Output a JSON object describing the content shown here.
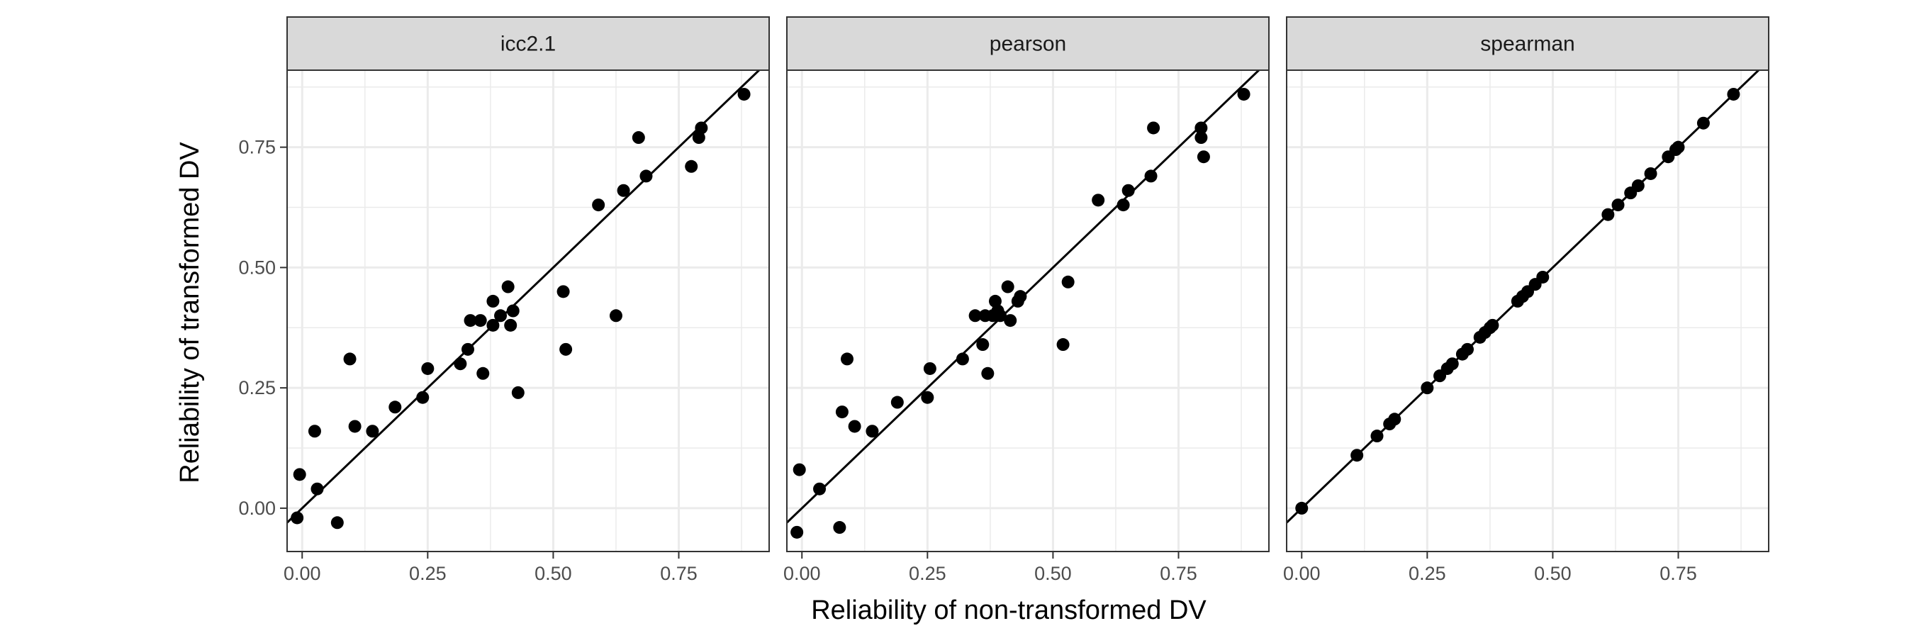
{
  "chart_data": {
    "type": "scatter",
    "xlabel": "Reliability of non-transformed DV",
    "ylabel": "Reliability of transformed DV",
    "xlim": [
      -0.03,
      0.93
    ],
    "ylim": [
      -0.09,
      0.91
    ],
    "x_ticks": [
      0.0,
      0.25,
      0.5,
      0.75
    ],
    "y_ticks": [
      0.0,
      0.25,
      0.5,
      0.75
    ],
    "tick_labels": [
      "0.00",
      "0.25",
      "0.50",
      "0.75"
    ],
    "grid": true,
    "reference_line": {
      "slope": 1,
      "intercept": 0
    },
    "colors": {
      "points": "#000000",
      "strip": "#d9d9d9",
      "grid": "#ebebeb",
      "border": "#333333"
    },
    "panels": [
      {
        "label": "icc2.1",
        "points": [
          {
            "x": -0.01,
            "y": -0.02
          },
          {
            "x": -0.005,
            "y": 0.07
          },
          {
            "x": 0.025,
            "y": 0.16
          },
          {
            "x": 0.03,
            "y": 0.04
          },
          {
            "x": 0.07,
            "y": -0.03
          },
          {
            "x": 0.095,
            "y": 0.31
          },
          {
            "x": 0.105,
            "y": 0.17
          },
          {
            "x": 0.14,
            "y": 0.16
          },
          {
            "x": 0.185,
            "y": 0.21
          },
          {
            "x": 0.24,
            "y": 0.23
          },
          {
            "x": 0.25,
            "y": 0.29
          },
          {
            "x": 0.315,
            "y": 0.3
          },
          {
            "x": 0.33,
            "y": 0.33
          },
          {
            "x": 0.335,
            "y": 0.39
          },
          {
            "x": 0.355,
            "y": 0.39
          },
          {
            "x": 0.36,
            "y": 0.28
          },
          {
            "x": 0.38,
            "y": 0.38
          },
          {
            "x": 0.38,
            "y": 0.43
          },
          {
            "x": 0.395,
            "y": 0.4
          },
          {
            "x": 0.41,
            "y": 0.46
          },
          {
            "x": 0.415,
            "y": 0.38
          },
          {
            "x": 0.42,
            "y": 0.41
          },
          {
            "x": 0.43,
            "y": 0.24
          },
          {
            "x": 0.52,
            "y": 0.45
          },
          {
            "x": 0.525,
            "y": 0.33
          },
          {
            "x": 0.59,
            "y": 0.63
          },
          {
            "x": 0.625,
            "y": 0.4
          },
          {
            "x": 0.64,
            "y": 0.66
          },
          {
            "x": 0.67,
            "y": 0.77
          },
          {
            "x": 0.685,
            "y": 0.69
          },
          {
            "x": 0.775,
            "y": 0.71
          },
          {
            "x": 0.79,
            "y": 0.77
          },
          {
            "x": 0.795,
            "y": 0.79
          },
          {
            "x": 0.88,
            "y": 0.86
          }
        ]
      },
      {
        "label": "pearson",
        "points": [
          {
            "x": -0.01,
            "y": -0.05
          },
          {
            "x": -0.005,
            "y": 0.08
          },
          {
            "x": 0.035,
            "y": 0.04
          },
          {
            "x": 0.075,
            "y": -0.04
          },
          {
            "x": 0.08,
            "y": 0.2
          },
          {
            "x": 0.09,
            "y": 0.31
          },
          {
            "x": 0.105,
            "y": 0.17
          },
          {
            "x": 0.14,
            "y": 0.16
          },
          {
            "x": 0.19,
            "y": 0.22
          },
          {
            "x": 0.25,
            "y": 0.23
          },
          {
            "x": 0.255,
            "y": 0.29
          },
          {
            "x": 0.32,
            "y": 0.31
          },
          {
            "x": 0.345,
            "y": 0.4
          },
          {
            "x": 0.36,
            "y": 0.34
          },
          {
            "x": 0.365,
            "y": 0.4
          },
          {
            "x": 0.37,
            "y": 0.28
          },
          {
            "x": 0.38,
            "y": 0.4
          },
          {
            "x": 0.385,
            "y": 0.43
          },
          {
            "x": 0.39,
            "y": 0.41
          },
          {
            "x": 0.395,
            "y": 0.4
          },
          {
            "x": 0.41,
            "y": 0.46
          },
          {
            "x": 0.415,
            "y": 0.39
          },
          {
            "x": 0.43,
            "y": 0.43
          },
          {
            "x": 0.435,
            "y": 0.44
          },
          {
            "x": 0.52,
            "y": 0.34
          },
          {
            "x": 0.53,
            "y": 0.47
          },
          {
            "x": 0.59,
            "y": 0.64
          },
          {
            "x": 0.64,
            "y": 0.63
          },
          {
            "x": 0.65,
            "y": 0.66
          },
          {
            "x": 0.695,
            "y": 0.69
          },
          {
            "x": 0.7,
            "y": 0.79
          },
          {
            "x": 0.795,
            "y": 0.77
          },
          {
            "x": 0.795,
            "y": 0.79
          },
          {
            "x": 0.8,
            "y": 0.73
          },
          {
            "x": 0.88,
            "y": 0.86
          }
        ]
      },
      {
        "label": "spearman",
        "points": [
          {
            "x": 0.0,
            "y": 0.0
          },
          {
            "x": 0.11,
            "y": 0.11
          },
          {
            "x": 0.15,
            "y": 0.15
          },
          {
            "x": 0.175,
            "y": 0.175
          },
          {
            "x": 0.185,
            "y": 0.185
          },
          {
            "x": 0.25,
            "y": 0.25
          },
          {
            "x": 0.275,
            "y": 0.275
          },
          {
            "x": 0.29,
            "y": 0.29
          },
          {
            "x": 0.3,
            "y": 0.3
          },
          {
            "x": 0.32,
            "y": 0.32
          },
          {
            "x": 0.33,
            "y": 0.33
          },
          {
            "x": 0.355,
            "y": 0.355
          },
          {
            "x": 0.365,
            "y": 0.365
          },
          {
            "x": 0.375,
            "y": 0.375
          },
          {
            "x": 0.38,
            "y": 0.38
          },
          {
            "x": 0.43,
            "y": 0.43
          },
          {
            "x": 0.44,
            "y": 0.44
          },
          {
            "x": 0.45,
            "y": 0.45
          },
          {
            "x": 0.465,
            "y": 0.465
          },
          {
            "x": 0.48,
            "y": 0.48
          },
          {
            "x": 0.61,
            "y": 0.61
          },
          {
            "x": 0.63,
            "y": 0.63
          },
          {
            "x": 0.655,
            "y": 0.655
          },
          {
            "x": 0.67,
            "y": 0.67
          },
          {
            "x": 0.695,
            "y": 0.695
          },
          {
            "x": 0.73,
            "y": 0.73
          },
          {
            "x": 0.745,
            "y": 0.745
          },
          {
            "x": 0.75,
            "y": 0.75
          },
          {
            "x": 0.8,
            "y": 0.8
          },
          {
            "x": 0.86,
            "y": 0.86
          }
        ]
      }
    ]
  }
}
